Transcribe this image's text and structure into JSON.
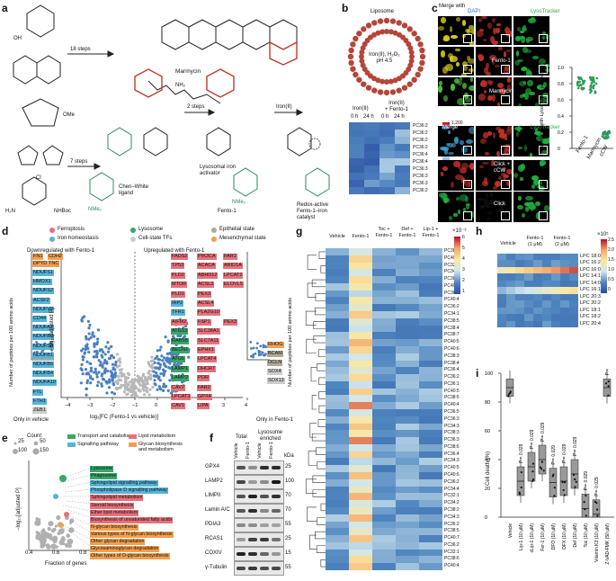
{
  "panels": {
    "a": "a",
    "b": "b",
    "c": "c",
    "d": "d",
    "e": "e",
    "f": "f",
    "g": "g",
    "h": "h",
    "i": "i"
  },
  "a": {
    "steps1": "18 steps",
    "steps2": "2 steps",
    "steps3": "7 steps",
    "iron": "Iron(II)",
    "marmycin": "Marmycin",
    "activator": "Lysosomal iron\nactivator",
    "ligand": "Chen–White\nligand",
    "fento": "Fento-1",
    "catalyst": "Redox-active\nFento-1–iron\ncatalyst",
    "ome": "OMe",
    "nme2": "NMe₂",
    "nhboc": "NHBoc",
    "cl": "Cl",
    "nh2": "NH₂",
    "oh": "OH",
    "h2n": "H₂N"
  },
  "b": {
    "title": "Liposome",
    "inner": "Iron(II), H₂O₂\npH 4.5",
    "col_groups": [
      "Iron(II)",
      "Iron(II)\n+ Fento-1"
    ],
    "cols": [
      "0 h",
      "24 h",
      "0 h",
      "24 h"
    ],
    "rows": [
      "PC36:2",
      "PC36:2",
      "PC36:2",
      "PC36:2",
      "PC36:4",
      "PC36:4",
      "PC36:3",
      "PC36:3",
      "PC36:3",
      "PC36:2"
    ],
    "scale": [
      "1,200",
      "1,000",
      "800",
      "600",
      "400",
      "200"
    ]
  },
  "c": {
    "merge_with": "Merge with",
    "dapi": "DAPI",
    "lyso": "LysoTracker",
    "fento": "Fento-1",
    "marmycin": "Marmycin",
    "merge": "Merge",
    "click_ccw": "Click +\ncCW",
    "click": "Click",
    "ylabel": "Pearson’s r with LysoTracker per cell",
    "yticks": [
      "1.0",
      "0.8",
      "0.6",
      "0.4",
      "0.2",
      "0"
    ],
    "xcats": [
      "Fento-1",
      "Marmycin",
      "cCW"
    ]
  },
  "d": {
    "left_title": "Downregulated with Fento-1",
    "right_title": "Upregulated with Fento-1",
    "legend": [
      {
        "label": "Ferroptosis",
        "color": "#e8707a"
      },
      {
        "label": "Lysosome",
        "color": "#3aa66a"
      },
      {
        "label": "Epithelial state",
        "color": "#b2a898"
      },
      {
        "label": "Iron homeostasis",
        "color": "#55b4d8"
      },
      {
        "label": "Cell-state TFs",
        "color": "#cccccc"
      },
      {
        "label": "Mesenchymal state",
        "color": "#f0a050"
      }
    ],
    "xlabel": "log₂[FC (Fento-1 vs vehicle)]",
    "ylabel": "−log₁₀[adjusted P]",
    "ylabel_side": "Number of peptides per 100 amino acids",
    "xticks": [
      "−4",
      "−3",
      "−2",
      "−1",
      "0",
      "1",
      "2",
      "3",
      "4"
    ],
    "yticks": [
      "10",
      "8",
      "6",
      "4",
      "2",
      "0"
    ],
    "only_vehicle": "Only in vehicle",
    "only_fento": "Only in Fento-1",
    "down_top": [
      {
        "t": "FN1",
        "c": "#f0a050"
      },
      {
        "t": "CDH2",
        "c": "#f0a050"
      },
      {
        "t": "DPYD",
        "c": "#f0a050"
      },
      {
        "t": "TNC",
        "c": "#f0a050"
      }
    ],
    "down_list": [
      "NDUFS1",
      "HMOX1",
      "NDUFS2",
      "ACSF2",
      "NDUFV2",
      "CD44",
      "NDUFA7",
      "NDUFB9",
      "NDUFS8",
      "NDUFB1",
      "NDUFB6",
      "NDUFB4",
      "NDUFA10",
      "FTL",
      "FTH1",
      "ZEB1"
    ],
    "down_colors": [
      "#55b4d8",
      "#55b4d8",
      "#55b4d8",
      "#55b4d8",
      "#55b4d8",
      "#55b4d8",
      "#55b4d8",
      "#55b4d8",
      "#55b4d8",
      "#55b4d8",
      "#55b4d8",
      "#55b4d8",
      "#55b4d8",
      "#55b4d8",
      "#55b4d8",
      "#cccccc"
    ],
    "up_list": [
      [
        "FADS2",
        "PIK3CA",
        "FAR1"
      ],
      [
        "TP53",
        "ACACA",
        "ARID1A"
      ],
      [
        "PLD2",
        "ABHD12",
        "LPCAT2"
      ],
      [
        "MTOR",
        "ACSL3",
        "ELOVL5"
      ],
      [
        "PLD1",
        "PEX3"
      ],
      [
        "IRP2",
        "ACSL4"
      ],
      [
        "TFR1",
        "PLA2G10"
      ],
      [
        "AIFM2",
        "FSP1",
        "PEX3"
      ],
      [
        "ATG13",
        "SLC38A1"
      ],
      [
        "RAB5B",
        "SLC7A11"
      ],
      [
        "BECN1",
        "EPHX1"
      ],
      [
        "ATG5",
        "LPCAT4"
      ],
      [
        "LAMP1",
        "DHCR7"
      ],
      [
        "LAMP2",
        "POR"
      ],
      [
        "CAV2",
        "FAR2"
      ],
      [
        "LPCAT3",
        "GPX4"
      ],
      [
        "CAV1",
        "LIPA"
      ]
    ],
    "up_colors": [
      [
        "#e8707a",
        "#e8707a",
        "#e8707a"
      ],
      [
        "#e8707a",
        "#e8707a",
        "#e8707a"
      ],
      [
        "#e8707a",
        "#e8707a",
        "#e8707a"
      ],
      [
        "#e8707a",
        "#e8707a",
        "#e8707a"
      ],
      [
        "#e8707a",
        "#e8707a"
      ],
      [
        "#55b4d8",
        "#e8707a"
      ],
      [
        "#55b4d8",
        "#e8707a"
      ],
      [
        "#e8707a",
        "#e8707a",
        "#e8707a"
      ],
      [
        "#3aa66a",
        "#e8707a"
      ],
      [
        "#3aa66a",
        "#e8707a"
      ],
      [
        "#3aa66a",
        "#e8707a"
      ],
      [
        "#3aa66a",
        "#e8707a"
      ],
      [
        "#3aa66a",
        "#e8707a"
      ],
      [
        "#3aa66a",
        "#e8707a"
      ],
      [
        "#e8707a",
        "#e8707a"
      ],
      [
        "#e8707a",
        "#e8707a"
      ],
      [
        "#e8707a",
        "#e8707a"
      ]
    ],
    "right_genes": [
      {
        "t": "RHOG",
        "c": "#f0a050"
      },
      {
        "t": "BCAM",
        "c": "#b2a898"
      },
      {
        "t": "OCLN",
        "c": "#b2a898"
      },
      {
        "t": "SOX4",
        "c": "#cccccc"
      },
      {
        "t": "SOX13",
        "c": "#cccccc"
      }
    ]
  },
  "e": {
    "count_title": "Count",
    "counts": [
      "25",
      "50",
      "100",
      "150"
    ],
    "legend": [
      {
        "label": "Transport and catabolism",
        "color": "#3aa66a"
      },
      {
        "label": "Lipid metabolism",
        "color": "#e8707a"
      },
      {
        "label": "Signalling pathway",
        "color": "#55b4d8"
      },
      {
        "label": "Glycan biosynthesis\nand metabolism",
        "color": "#f0a050"
      }
    ],
    "terms": [
      {
        "t": "Lysosome",
        "c": "#3aa66a"
      },
      {
        "t": "Phagosome",
        "c": "#3aa66a"
      },
      {
        "t": "Sphingolipid signalling pathway",
        "c": "#55b4d8"
      },
      {
        "t": "Phospholipase D signalling pathway",
        "c": "#55b4d8"
      },
      {
        "t": "Sphingolipid metabolism",
        "c": "#e8707a"
      },
      {
        "t": "Steroid biosynthesis",
        "c": "#e8707a"
      },
      {
        "t": "Ether lipid metabolism",
        "c": "#e8707a"
      },
      {
        "t": "Biosynthesis of unsaturated fatty acids",
        "c": "#e8707a"
      },
      {
        "t": "N-glycan biosynthesis",
        "c": "#f0a050"
      },
      {
        "t": "Various types of N-glycan biosynthesis",
        "c": "#f0a050"
      },
      {
        "t": "Other glycan degradation",
        "c": "#f0a050"
      },
      {
        "t": "Glycosaminoglycan degradation",
        "c": "#f0a050"
      },
      {
        "t": "Other types of O-glycan biosynthesis",
        "c": "#f0a050"
      }
    ],
    "xlabel": "Fraction of genes",
    "ylabel": "−log₁₀[adjusted P]",
    "xticks": [
      "0.4",
      "0.6",
      "0.8"
    ]
  },
  "f": {
    "group1": "Total",
    "group2": "Lysosome\nenriched",
    "cols": [
      "Vehicle",
      "Fento-1",
      "Vehicle",
      "Fento-1"
    ],
    "kda": "kDa",
    "rows": [
      {
        "name": "GPX4",
        "kda": "25"
      },
      {
        "name": "LAMP2",
        "kda": "100"
      },
      {
        "name": "LIMPII",
        "kda": "70"
      },
      {
        "name": "Lamin A/C",
        "kda": "70"
      },
      {
        "name": "PDIA3",
        "kda": "55"
      },
      {
        "name": "RCAS1",
        "kda": "25"
      },
      {
        "name": "COXIV",
        "kda": "15"
      },
      {
        "name": "γ-Tubulin",
        "kda": "55"
      }
    ]
  },
  "g": {
    "cols": [
      "Vehicle",
      "Fento-1",
      "Toc +\nFento-1",
      "Def +\nFento-1",
      "Lip-1 +\nFento-1"
    ],
    "scale_exp": "×10⁻³",
    "scale": [
      "6",
      "5",
      "4",
      "3",
      "2",
      "1"
    ],
    "rows": [
      "PC38:5",
      "PC40:7",
      "PC32:2",
      "PC34:2",
      "PC38:6",
      "PC40:6",
      "PC36:3",
      "PC40:4",
      "PC36:2",
      "PC34:1",
      "PC38:5",
      "PC38:4",
      "PC38:7",
      "PC40:5",
      "PC40:6",
      "PC38:3",
      "PC38:4",
      "PC36:4",
      "PC36:2",
      "PC36:1",
      "PC40:5",
      "PC38:5",
      "PC40:4",
      "PC36:5",
      "PC36:3",
      "PC34:3",
      "PC38:3",
      "PC36:3",
      "PC38:6",
      "PC36:4",
      "PC34:3",
      "PC40:5",
      "PC40:6",
      "PC36:2",
      "PC34:4",
      "PC32:1",
      "PC34:2",
      "PC38:2",
      "PC34:3",
      "PC36:2",
      "PC38:5",
      "PC40:7",
      "PC36:2",
      "PC32:1",
      "PC38:6",
      "PC40:4"
    ]
  },
  "h": {
    "cols": [
      "Vehicle",
      "Fento-1\n(1 μM)",
      "Fento-1\n(2 μM)"
    ],
    "scale_exp": "×10⁵",
    "scale": [
      "2.5",
      "2.0",
      "1.5",
      "1.0",
      "0.5",
      "0"
    ],
    "rows": [
      "LPC 18:0",
      "LPC 16:2",
      "LPC 16:0",
      "LPC 14:1",
      "LPC 14:0",
      "LPC 16:1",
      "LPC 20:3",
      "LPC 20:2",
      "LPC 18:1",
      "LPC 18:2",
      "LPC 20:4"
    ]
  },
  "i": {
    "ylabel": "Cell death (%)",
    "yticks": [
      "100",
      "80",
      "60",
      "40",
      "20",
      "0"
    ],
    "cats": [
      "Vehicle",
      "Lip-1 (10 μM)",
      "cLip-1 (10 μM)",
      "Fer-1 (10 μM)",
      "DFO (10 μM)",
      "DFX (10 μM)",
      "Def (10 μM)",
      "Toc (10 μM)",
      "Vitamin K3 (10 μM)",
      "Z-VAD-FMK (50 μM)"
    ],
    "pvals": [
      "P = 0.029",
      "P = 0.029",
      "P = 0.029",
      "P = 0.029",
      "P = 0.029",
      "P = 0.029",
      "P = 0.029",
      "P = 0.029",
      "P = 0.257"
    ],
    "medians": [
      90,
      25,
      35,
      40,
      24,
      25,
      30,
      6,
      2,
      90
    ]
  }
}
